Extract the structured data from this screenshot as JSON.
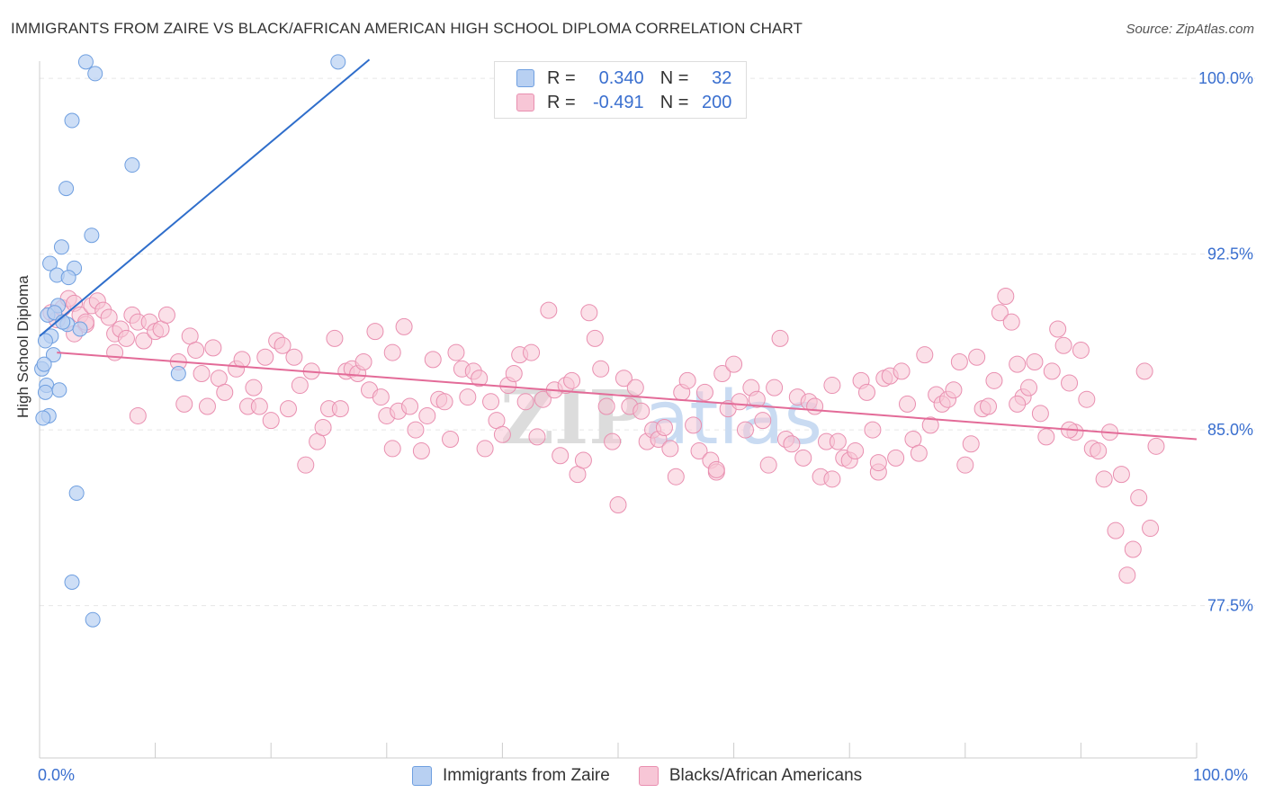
{
  "header": {
    "title": "IMMIGRANTS FROM ZAIRE VS BLACK/AFRICAN AMERICAN HIGH SCHOOL DIPLOMA CORRELATION CHART",
    "source": "Source: ZipAtlas.com"
  },
  "legend": {
    "row1": {
      "r_label": "R =",
      "r_value": "0.340",
      "n_label": "N =",
      "n_value": "32"
    },
    "row2": {
      "r_label": "R =",
      "r_value": "-0.491",
      "n_label": "N =",
      "n_value": "200"
    }
  },
  "bottom_legend": {
    "series1": "Immigrants from Zaire",
    "series2": "Blacks/African Americans"
  },
  "axis": {
    "x_min_label": "0.0%",
    "x_max_label": "100.0%",
    "y_title": "High School Diploma"
  },
  "colors": {
    "blue_fill": "#b8d0f2",
    "blue_stroke": "#6f9fe0",
    "blue_line": "#2f6ecb",
    "pink_fill": "#f7c6d6",
    "pink_stroke": "#e98fb0",
    "pink_line": "#e36b98",
    "tick_text": "#3a6fcf",
    "grid": "#e6e6e6"
  },
  "chart_data": {
    "type": "scatter",
    "title": "IMMIGRANTS FROM ZAIRE VS BLACK/AFRICAN AMERICAN HIGH SCHOOL DIPLOMA CORRELATION CHART",
    "xlabel": "",
    "ylabel": "High School Diploma",
    "xlim": [
      0,
      100
    ],
    "ylim": [
      71.0,
      101.5
    ],
    "yticks": [
      77.5,
      85.0,
      92.5,
      100.0
    ],
    "ytick_labels": [
      "77.5%",
      "85.0%",
      "92.5%",
      "100.0%"
    ],
    "xtick_labels": [
      "0.0%",
      "100.0%"
    ],
    "watermark": "ZIPatlas",
    "series": [
      {
        "name": "Immigrants from Zaire",
        "R": 0.34,
        "N": 32,
        "trend": {
          "x": [
            0,
            28.5
          ],
          "y": [
            89.0,
            100.8
          ]
        },
        "points": [
          [
            4.0,
            100.7
          ],
          [
            4.8,
            100.2
          ],
          [
            25.8,
            100.7
          ],
          [
            2.8,
            98.2
          ],
          [
            8.0,
            96.3
          ],
          [
            2.3,
            95.3
          ],
          [
            4.5,
            93.3
          ],
          [
            1.9,
            92.8
          ],
          [
            0.9,
            92.1
          ],
          [
            3.0,
            91.9
          ],
          [
            1.5,
            91.6
          ],
          [
            2.5,
            91.5
          ],
          [
            1.6,
            90.3
          ],
          [
            0.7,
            89.9
          ],
          [
            2.4,
            89.5
          ],
          [
            3.5,
            89.3
          ],
          [
            1.0,
            89.0
          ],
          [
            0.5,
            88.8
          ],
          [
            1.2,
            88.2
          ],
          [
            12.0,
            87.4
          ],
          [
            0.6,
            86.9
          ],
          [
            1.7,
            86.7
          ],
          [
            0.5,
            86.6
          ],
          [
            0.8,
            85.6
          ],
          [
            0.3,
            85.5
          ],
          [
            3.2,
            82.3
          ],
          [
            2.8,
            78.5
          ],
          [
            4.6,
            76.9
          ],
          [
            0.2,
            87.6
          ],
          [
            1.3,
            90.0
          ],
          [
            2.0,
            89.6
          ],
          [
            0.4,
            87.8
          ]
        ]
      },
      {
        "name": "Blacks/African Americans",
        "R": -0.491,
        "N": 200,
        "trend": {
          "x": [
            1.5,
            100
          ],
          "y": [
            88.3,
            84.6
          ]
        },
        "points": [
          [
            1,
            90.0
          ],
          [
            1.5,
            89.7
          ],
          [
            2,
            90.2
          ],
          [
            2.5,
            90.6
          ],
          [
            3,
            90.4
          ],
          [
            3.5,
            89.9
          ],
          [
            4,
            89.5
          ],
          [
            4.5,
            90.3
          ],
          [
            5,
            90.5
          ],
          [
            5.5,
            90.1
          ],
          [
            6,
            89.8
          ],
          [
            6.5,
            89.1
          ],
          [
            7,
            89.3
          ],
          [
            7.5,
            88.9
          ],
          [
            8,
            89.9
          ],
          [
            8.5,
            89.6
          ],
          [
            9,
            88.8
          ],
          [
            9.5,
            89.6
          ],
          [
            10,
            89.2
          ],
          [
            10.5,
            89.3
          ],
          [
            11,
            89.9
          ],
          [
            12,
            87.9
          ],
          [
            12.5,
            86.1
          ],
          [
            13,
            89.0
          ],
          [
            13.5,
            88.4
          ],
          [
            14,
            87.4
          ],
          [
            14.5,
            86.0
          ],
          [
            15,
            88.5
          ],
          [
            15.5,
            87.2
          ],
          [
            16,
            86.6
          ],
          [
            17,
            87.6
          ],
          [
            17.5,
            88.0
          ],
          [
            18,
            86.0
          ],
          [
            18.5,
            86.8
          ],
          [
            19,
            86.0
          ],
          [
            19.5,
            88.1
          ],
          [
            20,
            85.4
          ],
          [
            20.5,
            88.8
          ],
          [
            21,
            88.6
          ],
          [
            21.5,
            85.9
          ],
          [
            22,
            88.1
          ],
          [
            22.5,
            86.9
          ],
          [
            23,
            83.5
          ],
          [
            23.5,
            87.5
          ],
          [
            24,
            84.5
          ],
          [
            24.5,
            85.1
          ],
          [
            25,
            85.9
          ],
          [
            25.5,
            88.9
          ],
          [
            26,
            85.9
          ],
          [
            26.5,
            87.5
          ],
          [
            27,
            87.6
          ],
          [
            27.5,
            87.4
          ],
          [
            28,
            87.9
          ],
          [
            28.5,
            86.7
          ],
          [
            29,
            89.2
          ],
          [
            29.5,
            86.4
          ],
          [
            30,
            85.6
          ],
          [
            30.5,
            88.3
          ],
          [
            31,
            85.8
          ],
          [
            31.5,
            89.4
          ],
          [
            32,
            86.0
          ],
          [
            32.5,
            85.0
          ],
          [
            33,
            84.1
          ],
          [
            33.5,
            85.6
          ],
          [
            34,
            88.0
          ],
          [
            34.5,
            86.3
          ],
          [
            35,
            86.2
          ],
          [
            35.5,
            84.6
          ],
          [
            36,
            88.3
          ],
          [
            36.5,
            87.6
          ],
          [
            37,
            86.4
          ],
          [
            37.5,
            87.5
          ],
          [
            38,
            87.2
          ],
          [
            38.5,
            84.2
          ],
          [
            39,
            86.2
          ],
          [
            39.5,
            85.4
          ],
          [
            40,
            84.8
          ],
          [
            40.5,
            86.9
          ],
          [
            41,
            87.4
          ],
          [
            41.5,
            88.2
          ],
          [
            42,
            86.2
          ],
          [
            42.5,
            88.3
          ],
          [
            43,
            84.7
          ],
          [
            43.5,
            86.3
          ],
          [
            44,
            90.1
          ],
          [
            44.5,
            86.7
          ],
          [
            45,
            83.9
          ],
          [
            45.5,
            86.9
          ],
          [
            46,
            87.1
          ],
          [
            46.5,
            83.1
          ],
          [
            47,
            83.7
          ],
          [
            47.5,
            90.0
          ],
          [
            48,
            88.9
          ],
          [
            48.5,
            87.6
          ],
          [
            49,
            86.0
          ],
          [
            49.5,
            84.5
          ],
          [
            50,
            81.8
          ],
          [
            50.5,
            87.2
          ],
          [
            51,
            86.0
          ],
          [
            51.5,
            86.8
          ],
          [
            52,
            85.8
          ],
          [
            52.5,
            84.5
          ],
          [
            53,
            85.0
          ],
          [
            53.5,
            84.6
          ],
          [
            54,
            85.1
          ],
          [
            54.5,
            84.2
          ],
          [
            55,
            83.0
          ],
          [
            55.5,
            86.6
          ],
          [
            56,
            87.1
          ],
          [
            56.5,
            85.2
          ],
          [
            57,
            84.1
          ],
          [
            57.5,
            86.6
          ],
          [
            58,
            83.7
          ],
          [
            58.5,
            83.2
          ],
          [
            59,
            87.4
          ],
          [
            59.5,
            85.9
          ],
          [
            60,
            87.8
          ],
          [
            60.5,
            86.2
          ],
          [
            61,
            85.0
          ],
          [
            61.5,
            86.8
          ],
          [
            62,
            86.3
          ],
          [
            62.5,
            85.4
          ],
          [
            63,
            83.5
          ],
          [
            63.5,
            86.8
          ],
          [
            64,
            88.9
          ],
          [
            64.5,
            84.6
          ],
          [
            65,
            84.4
          ],
          [
            65.5,
            86.4
          ],
          [
            66,
            83.8
          ],
          [
            66.5,
            86.2
          ],
          [
            67,
            86.0
          ],
          [
            67.5,
            83.0
          ],
          [
            68,
            84.5
          ],
          [
            68.5,
            86.9
          ],
          [
            69,
            84.5
          ],
          [
            69.5,
            83.8
          ],
          [
            70,
            83.7
          ],
          [
            70.5,
            84.1
          ],
          [
            71,
            87.1
          ],
          [
            71.5,
            86.6
          ],
          [
            72,
            85.0
          ],
          [
            72.5,
            83.2
          ],
          [
            73,
            87.2
          ],
          [
            73.5,
            87.3
          ],
          [
            74,
            83.8
          ],
          [
            74.5,
            87.5
          ],
          [
            75,
            86.1
          ],
          [
            75.5,
            84.6
          ],
          [
            76,
            84.0
          ],
          [
            76.5,
            88.2
          ],
          [
            77,
            85.2
          ],
          [
            77.5,
            86.5
          ],
          [
            78,
            86.1
          ],
          [
            78.5,
            86.3
          ],
          [
            79,
            86.7
          ],
          [
            79.5,
            87.9
          ],
          [
            80,
            83.5
          ],
          [
            80.5,
            84.4
          ],
          [
            81,
            88.1
          ],
          [
            81.5,
            85.9
          ],
          [
            82,
            86.0
          ],
          [
            82.5,
            87.1
          ],
          [
            83,
            90.0
          ],
          [
            83.5,
            90.7
          ],
          [
            84,
            89.6
          ],
          [
            84.5,
            87.8
          ],
          [
            85,
            86.4
          ],
          [
            85.5,
            86.8
          ],
          [
            86,
            87.9
          ],
          [
            86.5,
            85.7
          ],
          [
            87,
            84.7
          ],
          [
            87.5,
            87.5
          ],
          [
            88,
            89.3
          ],
          [
            88.5,
            88.6
          ],
          [
            89,
            87.0
          ],
          [
            89.5,
            84.9
          ],
          [
            90,
            88.4
          ],
          [
            90.5,
            86.3
          ],
          [
            91,
            84.2
          ],
          [
            91.5,
            84.1
          ],
          [
            92,
            82.9
          ],
          [
            92.5,
            84.9
          ],
          [
            93,
            80.7
          ],
          [
            93.5,
            83.1
          ],
          [
            94,
            78.8
          ],
          [
            94.5,
            79.9
          ],
          [
            95,
            82.1
          ],
          [
            95.5,
            87.5
          ],
          [
            96,
            80.8
          ],
          [
            96.5,
            84.3
          ],
          [
            4.0,
            89.6
          ],
          [
            8.5,
            85.6
          ],
          [
            30.5,
            84.2
          ],
          [
            58.5,
            83.3
          ],
          [
            68.5,
            82.9
          ],
          [
            72.5,
            83.6
          ],
          [
            84.5,
            86.1
          ],
          [
            89.0,
            85.0
          ],
          [
            3.0,
            89.1
          ],
          [
            6.5,
            88.3
          ]
        ]
      }
    ]
  }
}
